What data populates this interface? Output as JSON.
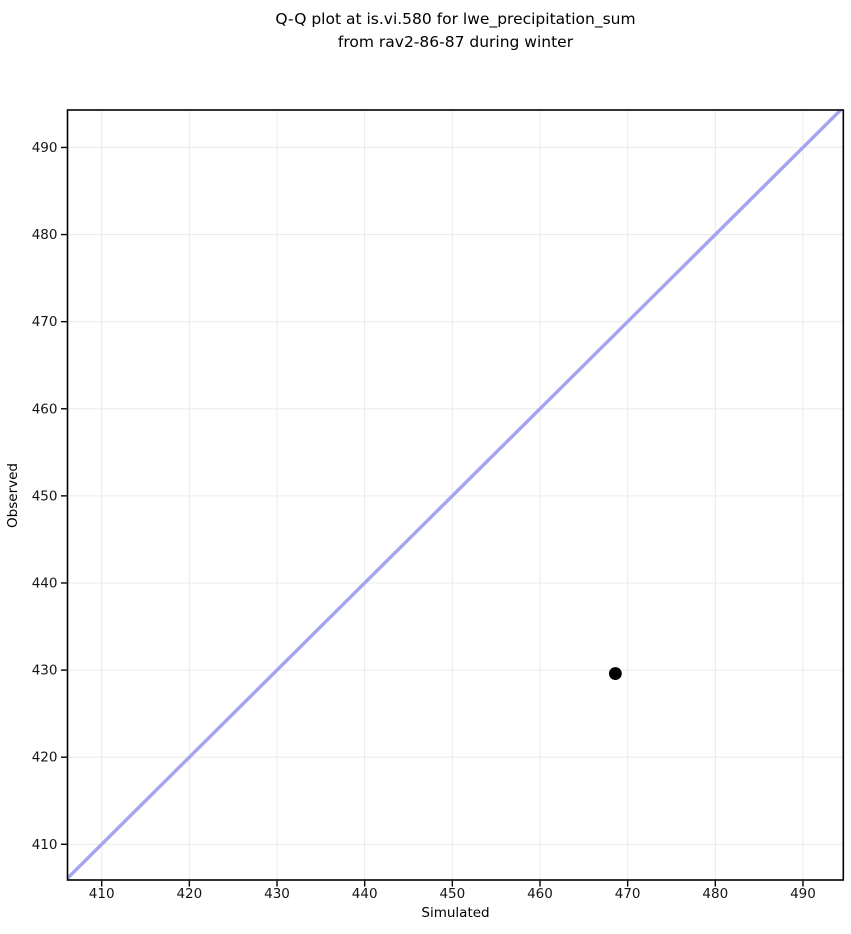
{
  "title": {
    "line1": "Q-Q plot at is.vi.580 for lwe_precipitation_sum",
    "line2": "from rav2-86-87 during winter"
  },
  "chart_data": {
    "type": "scatter",
    "title": "Q-Q plot at is.vi.580 for lwe_precipitation_sum\nfrom rav2-86-87 during winter",
    "xlabel": "Simulated",
    "ylabel": "Observed",
    "xlim": [
      406.1,
      494.6
    ],
    "ylim": [
      405.9,
      494.3
    ],
    "xticks": [
      410,
      420,
      430,
      440,
      450,
      460,
      470,
      480,
      490
    ],
    "yticks": [
      410,
      420,
      430,
      440,
      450,
      460,
      470,
      480,
      490
    ],
    "grid": true,
    "legend": false,
    "points": [
      {
        "x": 468.6,
        "y": 429.6
      }
    ],
    "identity_line": {
      "from": 405.0,
      "to": 496.0,
      "color": "#a4a4f0",
      "width": 3.4
    },
    "styles": {
      "point_color": "#000000",
      "point_radius": 6.4,
      "grid_color": "#ececec",
      "spine_color": "#000000",
      "tick_label_color": "#151515",
      "background": "#ffffff"
    }
  }
}
